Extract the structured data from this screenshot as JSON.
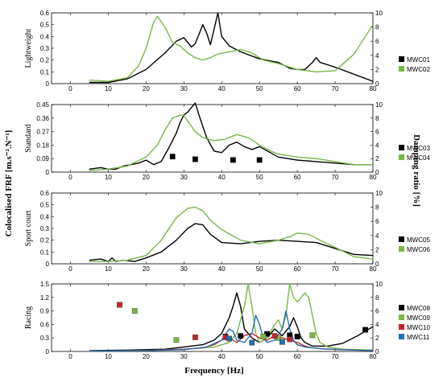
{
  "figure": {
    "xlabel": "Frequency [Hz]",
    "ylabel_left": "Colocalised FRF [m.s⁻².N⁻¹]",
    "ylabel_right": "Damping ratio [%]"
  },
  "chart_data": [
    {
      "type": "line",
      "panel_label": "Lightweight",
      "xlim": [
        -5,
        80
      ],
      "x_ticks": [
        0,
        10,
        20,
        30,
        40,
        50,
        60,
        70,
        80
      ],
      "ylim": [
        0,
        0.6
      ],
      "y_ticks": [
        "0",
        "0.1",
        "0.2",
        "0.3",
        "0.4",
        "0.5",
        "0.6"
      ],
      "y2lim": [
        0,
        10
      ],
      "y2_ticks": [
        "0",
        "2",
        "4",
        "6",
        "8",
        "10"
      ],
      "legend": [
        {
          "label": "MWC01",
          "color": "#000000"
        },
        {
          "label": "MWC02",
          "color": "#7ab648"
        }
      ],
      "series": [
        {
          "name": "MWC01",
          "color": "#000000",
          "x": [
            5,
            10,
            15,
            20,
            25,
            28,
            30,
            32,
            33,
            35,
            36,
            37,
            38,
            39,
            40,
            42,
            45,
            50,
            55,
            58,
            60,
            62,
            64,
            65,
            66,
            70,
            75,
            80
          ],
          "y": [
            0.01,
            0.01,
            0.04,
            0.12,
            0.26,
            0.36,
            0.39,
            0.31,
            0.34,
            0.5,
            0.43,
            0.33,
            0.46,
            0.6,
            0.4,
            0.32,
            0.27,
            0.21,
            0.18,
            0.13,
            0.12,
            0.12,
            0.18,
            0.22,
            0.18,
            0.14,
            0.08,
            0.02
          ]
        },
        {
          "name": "MWC02",
          "color": "#7ab648",
          "x": [
            5,
            10,
            15,
            18,
            20,
            22,
            23,
            25,
            27,
            29,
            31,
            33,
            35,
            37,
            39,
            42,
            45,
            48,
            51,
            55,
            60,
            65,
            70,
            75,
            80
          ],
          "y": [
            0.03,
            0.02,
            0.05,
            0.15,
            0.3,
            0.52,
            0.57,
            0.48,
            0.35,
            0.32,
            0.26,
            0.22,
            0.2,
            0.22,
            0.25,
            0.27,
            0.29,
            0.26,
            0.2,
            0.17,
            0.12,
            0.1,
            0.11,
            0.25,
            0.5
          ]
        }
      ]
    },
    {
      "type": "line",
      "panel_label": "Standard",
      "xlim": [
        -5,
        80
      ],
      "x_ticks": [
        0,
        10,
        20,
        30,
        40,
        50,
        60,
        70,
        80
      ],
      "ylim": [
        0,
        0.45
      ],
      "y_ticks": [
        "0",
        "0.09",
        "0.18",
        "0.27",
        "0.36",
        "0.45"
      ],
      "y2lim": [
        0,
        10
      ],
      "y2_ticks": [
        "0",
        "2",
        "4",
        "6",
        "8",
        "10"
      ],
      "legend": [
        {
          "label": "MWC03",
          "color": "#000000"
        },
        {
          "label": "MWC04",
          "color": "#7ab648"
        }
      ],
      "series": [
        {
          "name": "MWC03",
          "color": "#000000",
          "x": [
            5,
            8,
            10,
            12,
            14,
            16,
            18,
            20,
            22,
            24,
            26,
            28,
            29,
            30,
            31,
            32,
            33,
            34,
            36,
            38,
            40,
            42,
            44,
            46,
            48,
            50,
            55,
            60,
            65,
            70,
            75,
            80
          ],
          "y": [
            0.02,
            0.03,
            0.02,
            0.02,
            0.04,
            0.05,
            0.06,
            0.08,
            0.05,
            0.07,
            0.16,
            0.26,
            0.33,
            0.38,
            0.4,
            0.43,
            0.46,
            0.38,
            0.23,
            0.14,
            0.13,
            0.18,
            0.2,
            0.17,
            0.15,
            0.17,
            0.1,
            0.08,
            0.07,
            0.06,
            0.05,
            0.05
          ]
        },
        {
          "name": "MWC04",
          "color": "#7ab648",
          "x": [
            5,
            10,
            15,
            20,
            23,
            25,
            27,
            29,
            30,
            31,
            33,
            35,
            38,
            41,
            44,
            47,
            50,
            53,
            55,
            60,
            65,
            70,
            75,
            80
          ],
          "y": [
            0.01,
            0.02,
            0.04,
            0.1,
            0.18,
            0.28,
            0.36,
            0.38,
            0.38,
            0.34,
            0.27,
            0.23,
            0.21,
            0.22,
            0.25,
            0.23,
            0.18,
            0.14,
            0.12,
            0.1,
            0.09,
            0.07,
            0.05,
            0.05
          ]
        },
        {
          "name": "MWC03 damping",
          "color": "#000000",
          "marker": "square",
          "axis": "y2",
          "x": [
            27,
            33,
            43,
            50
          ],
          "y": [
            2.3,
            1.9,
            1.8,
            1.8
          ]
        }
      ]
    },
    {
      "type": "line",
      "panel_label": "Sport court",
      "xlim": [
        -5,
        80
      ],
      "x_ticks": [
        0,
        10,
        20,
        30,
        40,
        50,
        60,
        70,
        80
      ],
      "ylim": [
        0,
        0.6
      ],
      "y_ticks": [
        "0",
        "0.1",
        "0.2",
        "0.3",
        "0.4",
        "0.5",
        "0.6"
      ],
      "y2lim": [
        0,
        10
      ],
      "y2_ticks": [
        "0",
        "2",
        "4",
        "6",
        "8",
        "10"
      ],
      "legend": [
        {
          "label": "MWC05",
          "color": "#000000"
        },
        {
          "label": "MWC06",
          "color": "#7ab648"
        }
      ],
      "series": [
        {
          "name": "MWC05",
          "color": "#000000",
          "x": [
            5,
            8,
            10,
            11,
            12,
            14,
            17,
            20,
            24,
            28,
            31,
            33,
            35,
            37,
            40,
            45,
            50,
            55,
            60,
            65,
            70,
            75,
            80
          ],
          "y": [
            0.03,
            0.04,
            0.02,
            0.05,
            0.02,
            0.03,
            0.02,
            0.05,
            0.1,
            0.2,
            0.3,
            0.34,
            0.33,
            0.25,
            0.18,
            0.17,
            0.19,
            0.2,
            0.19,
            0.18,
            0.13,
            0.08,
            0.07
          ]
        },
        {
          "name": "MWC06",
          "color": "#7ab648",
          "x": [
            5,
            10,
            15,
            20,
            24,
            28,
            31,
            33,
            35,
            37,
            40,
            45,
            50,
            55,
            58,
            60,
            63,
            66,
            70,
            75,
            80
          ],
          "y": [
            0.02,
            0.02,
            0.03,
            0.07,
            0.2,
            0.39,
            0.47,
            0.48,
            0.45,
            0.37,
            0.29,
            0.2,
            0.17,
            0.2,
            0.23,
            0.26,
            0.25,
            0.2,
            0.14,
            0.06,
            0.04
          ]
        }
      ]
    },
    {
      "type": "line",
      "panel_label": "Racing",
      "xlim": [
        -5,
        80
      ],
      "x_ticks": [
        0,
        10,
        20,
        30,
        40,
        50,
        60,
        70,
        80
      ],
      "ylim": [
        0,
        1.5
      ],
      "y_ticks": [
        "0",
        "0.3",
        "0.6",
        "0.9",
        "1.2",
        "1.5"
      ],
      "y2lim": [
        0,
        10
      ],
      "y2_ticks": [
        "0",
        "2",
        "4",
        "6",
        "8",
        "10"
      ],
      "legend": [
        {
          "label": "MWC08",
          "color": "#000000"
        },
        {
          "label": "MWC09",
          "color": "#7ab648"
        },
        {
          "label": "MWC10",
          "color": "#c0272d"
        },
        {
          "label": "MWC11",
          "color": "#1f6fb2"
        }
      ],
      "series": [
        {
          "name": "MWC08",
          "color": "#000000",
          "x": [
            5,
            15,
            25,
            30,
            35,
            38,
            40,
            42,
            43,
            44,
            45,
            46,
            48,
            50,
            52,
            54,
            56,
            58,
            59,
            60,
            61,
            62,
            64,
            68,
            72,
            76,
            80
          ],
          "y": [
            0.02,
            0.03,
            0.05,
            0.1,
            0.15,
            0.25,
            0.4,
            0.75,
            1.0,
            1.3,
            1.0,
            0.5,
            0.3,
            0.2,
            0.3,
            0.5,
            0.35,
            0.55,
            0.75,
            0.55,
            0.3,
            0.2,
            0.12,
            0.12,
            0.18,
            0.35,
            0.55
          ]
        },
        {
          "name": "MWC09",
          "color": "#7ab648",
          "x": [
            5,
            20,
            30,
            38,
            42,
            44,
            46,
            47,
            48,
            49,
            50,
            52,
            54,
            55,
            56,
            57,
            58,
            59,
            60,
            61,
            62,
            63,
            64,
            65,
            66,
            68,
            72,
            80
          ],
          "y": [
            0.01,
            0.02,
            0.05,
            0.1,
            0.2,
            0.4,
            1.0,
            1.5,
            1.0,
            0.4,
            0.2,
            0.3,
            0.6,
            0.7,
            0.5,
            0.8,
            1.5,
            1.2,
            1.1,
            1.2,
            1.3,
            1.2,
            0.8,
            0.4,
            0.2,
            0.1,
            0.05,
            0.03
          ]
        },
        {
          "name": "MWC10",
          "color": "#c0272d",
          "x": [
            5,
            20,
            30,
            35,
            38,
            40,
            41,
            42,
            44,
            46,
            48,
            50,
            52,
            54,
            56,
            58,
            60,
            62,
            64,
            68,
            72,
            80
          ],
          "y": [
            0.01,
            0.02,
            0.05,
            0.08,
            0.15,
            0.25,
            0.35,
            0.3,
            0.2,
            0.35,
            0.4,
            0.3,
            0.25,
            0.35,
            0.3,
            0.25,
            0.2,
            0.12,
            0.08,
            0.05,
            0.04,
            0.02
          ]
        },
        {
          "name": "MWC11",
          "color": "#1f6fb2",
          "x": [
            5,
            20,
            30,
            36,
            40,
            42,
            43,
            44,
            46,
            48,
            49,
            50,
            51,
            52,
            54,
            56,
            57,
            58,
            59,
            60,
            62,
            66,
            72,
            80
          ],
          "y": [
            0.01,
            0.02,
            0.04,
            0.1,
            0.25,
            0.5,
            0.45,
            0.25,
            0.2,
            0.4,
            0.8,
            0.6,
            0.3,
            0.2,
            0.25,
            0.5,
            0.9,
            0.5,
            0.25,
            0.15,
            0.1,
            0.06,
            0.04,
            0.02
          ]
        },
        {
          "name": "MWC08 damping",
          "color": "#000000",
          "marker": "square",
          "axis": "y2",
          "x": [
            41,
            45,
            52,
            58,
            60,
            78
          ],
          "y": [
            2.2,
            2.3,
            2.6,
            2.4,
            2.2,
            3.2
          ]
        },
        {
          "name": "MWC09 damping",
          "color": "#7ab648",
          "marker": "square",
          "axis": "y2",
          "x": [
            17,
            28,
            51,
            55,
            64
          ],
          "y": [
            6.0,
            1.7,
            2.2,
            2.0,
            2.4
          ]
        },
        {
          "name": "MWC10 damping",
          "color": "#c0272d",
          "marker": "square",
          "axis": "y2",
          "x": [
            13,
            33,
            41,
            54,
            58
          ],
          "y": [
            6.9,
            2.1,
            2.1,
            2.3,
            1.8
          ]
        },
        {
          "name": "MWC11 damping",
          "color": "#1f6fb2",
          "marker": "square",
          "axis": "y2",
          "x": [
            42,
            48,
            56
          ],
          "y": [
            1.9,
            1.3,
            1.4
          ]
        }
      ]
    }
  ]
}
